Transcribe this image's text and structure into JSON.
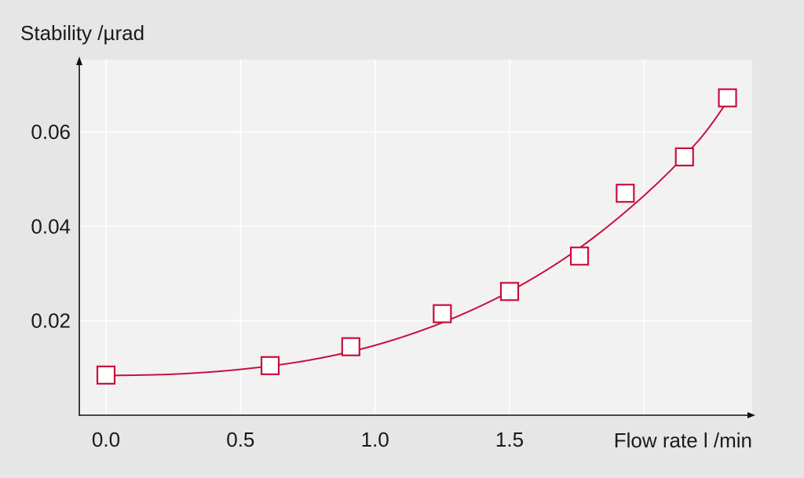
{
  "chart_data": {
    "type": "scatter",
    "title": "",
    "xlabel": "Flow rate l /min",
    "ylabel": "Stability /µrad",
    "xlim": [
      -0.1,
      2.4
    ],
    "ylim": [
      0,
      0.075
    ],
    "x_ticks": [
      0.0,
      0.5,
      1.0,
      1.5
    ],
    "x_tick_labels": [
      "0.0",
      "0.5",
      "1.0",
      "1.5"
    ],
    "y_ticks": [
      0.02,
      0.04,
      0.06
    ],
    "y_tick_labels": [
      "0.02",
      "0.04",
      "0.06"
    ],
    "grid": true,
    "legend": "none",
    "series": [
      {
        "marker": "square",
        "x": [
          0.0,
          0.61,
          0.91,
          1.25,
          1.5,
          1.76,
          1.93,
          2.15,
          2.31
        ],
        "y": [
          0.0085,
          0.0105,
          0.0145,
          0.0215,
          0.0262,
          0.0337,
          0.047,
          0.0547,
          0.0672
        ]
      }
    ],
    "fit_curve": {
      "type": "exponential",
      "x": [
        0.0,
        0.25,
        0.5,
        0.75,
        1.0,
        1.25,
        1.5,
        1.75,
        2.0,
        2.2,
        2.31
      ],
      "y": [
        0.0084,
        0.0087,
        0.0097,
        0.0116,
        0.0148,
        0.0196,
        0.0262,
        0.035,
        0.0465,
        0.058,
        0.0665
      ]
    },
    "colors": {
      "series": "#c8103e",
      "plot_background": "#f2f2f2",
      "page_background": "#e6e6e6",
      "grid": "#ffffff",
      "axis": "#111111"
    }
  }
}
